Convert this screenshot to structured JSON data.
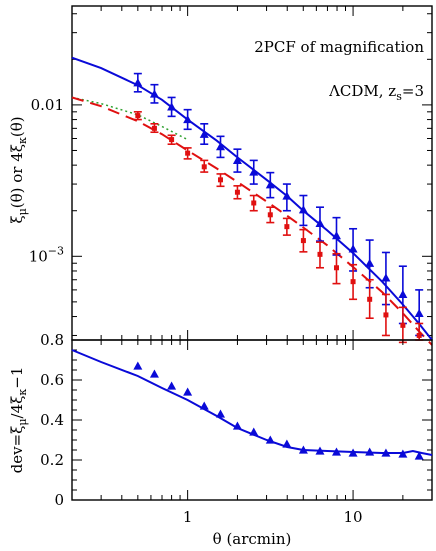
{
  "colors": {
    "blue": "#0a0ad8",
    "red": "#e01010",
    "green": "#2ea02e",
    "axis": "#000000"
  },
  "chart_data": [
    {
      "id": "top",
      "type": "line",
      "title": "",
      "xlabel": "",
      "ylabel": "ξμ(θ) or 4ξκ(θ)",
      "ylabel_parts": {
        "xi": "ξ",
        "mu": "μ",
        "mid": "(θ) or 4",
        "kappa": "κ",
        "end": "(θ)"
      },
      "xscale": "log",
      "yscale": "log",
      "xlim": [
        0.2,
        30
      ],
      "ylim": [
        0.00028,
        0.045
      ],
      "yticks": [
        {
          "value": 0.01,
          "label": "0.01"
        },
        {
          "value": 0.001,
          "label": "10",
          "exp": "−3"
        }
      ],
      "annotations": {
        "line1": "2PCF of magnification",
        "lcdm": "ΛCDM, z",
        "zs_sub": "s",
        "zs_val": "=3"
      },
      "series": [
        {
          "kind": "line",
          "color": "#0a0ad8",
          "dash": "solid",
          "x": [
            0.2,
            0.3,
            0.5,
            0.7,
            1.0,
            1.5,
            2.0,
            3.0,
            4.0,
            5.0,
            7.0,
            10.0,
            15.0,
            20.0,
            25.0,
            30.0
          ],
          "y": [
            0.0205,
            0.0175,
            0.0135,
            0.0108,
            0.008,
            0.0058,
            0.0045,
            0.0032,
            0.0025,
            0.002,
            0.00148,
            0.00105,
            0.00068,
            0.00048,
            0.00036,
            0.00028
          ]
        },
        {
          "kind": "line",
          "color": "#2ea02e",
          "dash": "dotted",
          "x": [
            0.2,
            0.3,
            0.5,
            0.7,
            1.0
          ],
          "y": [
            0.0112,
            0.0102,
            0.0086,
            0.0072,
            0.0059
          ]
        },
        {
          "kind": "line",
          "color": "#e01010",
          "dash": "dashed",
          "x": [
            0.2,
            0.3,
            0.5,
            0.7,
            1.0,
            1.5,
            2.0,
            3.0,
            4.0,
            5.0,
            7.0,
            10.0,
            15.0,
            20.0,
            25.0,
            30.0
          ],
          "y": [
            0.0112,
            0.0098,
            0.0078,
            0.0064,
            0.005,
            0.0038,
            0.0031,
            0.0023,
            0.00185,
            0.00155,
            0.00118,
            0.00085,
            0.00058,
            0.00042,
            0.00032,
            0.00026
          ]
        },
        {
          "kind": "points",
          "marker": "triangle",
          "color": "#0a0ad8",
          "x": [
            0.5,
            0.63,
            0.8,
            1.0,
            1.26,
            1.58,
            2.0,
            2.51,
            3.16,
            3.98,
            5.01,
            6.31,
            7.94,
            10.0,
            12.6,
            15.8,
            20.0,
            25.1
          ],
          "y": [
            0.014,
            0.0118,
            0.0097,
            0.008,
            0.0064,
            0.0053,
            0.0043,
            0.0036,
            0.00297,
            0.0025,
            0.00203,
            0.00165,
            0.00137,
            0.00112,
            0.0009,
            0.00072,
            0.00056,
            0.00042
          ],
          "yerr_low": [
            0.0122,
            0.0103,
            0.0084,
            0.0069,
            0.0055,
            0.0045,
            0.0036,
            0.003,
            0.00244,
            0.002,
            0.0016,
            0.00126,
            0.00102,
            0.0008,
            0.00062,
            0.00048,
            0.00036,
            0.0003
          ],
          "yerr_high": [
            0.0161,
            0.0136,
            0.0112,
            0.0093,
            0.0075,
            0.0062,
            0.0051,
            0.0043,
            0.00357,
            0.003,
            0.00252,
            0.00211,
            0.0018,
            0.00152,
            0.00128,
            0.00106,
            0.00086,
            0.0006
          ]
        },
        {
          "kind": "points",
          "marker": "square",
          "color": "#e01010",
          "x": [
            0.5,
            0.63,
            0.8,
            1.0,
            1.26,
            1.58,
            2.0,
            2.51,
            3.16,
            3.98,
            5.01,
            6.31,
            7.94,
            10.0,
            12.6,
            15.8,
            20.0,
            25.1
          ],
          "y": [
            0.0085,
            0.007,
            0.0059,
            0.0048,
            0.0039,
            0.0032,
            0.00265,
            0.00225,
            0.00188,
            0.00157,
            0.00127,
            0.00103,
            0.00084,
            0.00068,
            0.00052,
            0.00041,
            0.00035,
            0.0003
          ],
          "yerr_low": [
            0.008,
            0.0066,
            0.0055,
            0.0044,
            0.0036,
            0.0029,
            0.0024,
            0.002,
            0.00167,
            0.00138,
            0.00107,
            0.00084,
            0.00066,
            0.00052,
            0.00039,
            0.0003,
            0.00027,
            0.00028
          ],
          "yerr_high": [
            0.009,
            0.0075,
            0.0063,
            0.0052,
            0.0043,
            0.0035,
            0.00292,
            0.00252,
            0.00211,
            0.00178,
            0.0015,
            0.00124,
            0.00104,
            0.00088,
            0.0007,
            0.00056,
            0.00046,
            0.00036
          ]
        }
      ]
    },
    {
      "id": "bottom",
      "type": "line",
      "title": "",
      "xlabel": "θ (arcmin)",
      "ylabel": "dev=ξμ/4ξκ−1",
      "ylabel_parts": {
        "pre": "dev=",
        "xi": "ξ",
        "mu": "μ",
        "mid": "/4",
        "kappa": "κ",
        "end": "−1"
      },
      "xscale": "log",
      "yscale": "linear",
      "xlim": [
        0.2,
        30
      ],
      "ylim": [
        0,
        0.8
      ],
      "xticks": [
        {
          "value": 1,
          "label": "1"
        },
        {
          "value": 10,
          "label": "10"
        }
      ],
      "yticks": [
        {
          "value": 0,
          "label": "0"
        },
        {
          "value": 0.2,
          "label": "0.2"
        },
        {
          "value": 0.4,
          "label": "0.4"
        },
        {
          "value": 0.6,
          "label": "0.6"
        },
        {
          "value": 0.8,
          "label": "0.8"
        }
      ],
      "series": [
        {
          "kind": "line",
          "color": "#0a0ad8",
          "dash": "solid",
          "x": [
            0.2,
            0.3,
            0.5,
            0.7,
            1.0,
            1.5,
            2.0,
            3.0,
            4.0,
            5.0,
            7.0,
            10.0,
            15.0,
            20.0,
            23.0,
            26.0,
            30.0
          ],
          "y": [
            0.75,
            0.69,
            0.62,
            0.56,
            0.5,
            0.42,
            0.36,
            0.3,
            0.265,
            0.25,
            0.245,
            0.24,
            0.235,
            0.235,
            0.245,
            0.235,
            0.225
          ]
        },
        {
          "kind": "points",
          "marker": "triangle",
          "color": "#0a0ad8",
          "x": [
            0.5,
            0.63,
            0.8,
            1.0,
            1.26,
            1.58,
            2.0,
            2.51,
            3.16,
            3.98,
            5.01,
            6.31,
            7.94,
            10.0,
            12.6,
            15.8,
            20.0,
            25.1
          ],
          "y": [
            0.67,
            0.63,
            0.57,
            0.54,
            0.47,
            0.43,
            0.37,
            0.34,
            0.3,
            0.28,
            0.25,
            0.245,
            0.24,
            0.235,
            0.24,
            0.235,
            0.23,
            0.22
          ]
        }
      ]
    }
  ]
}
